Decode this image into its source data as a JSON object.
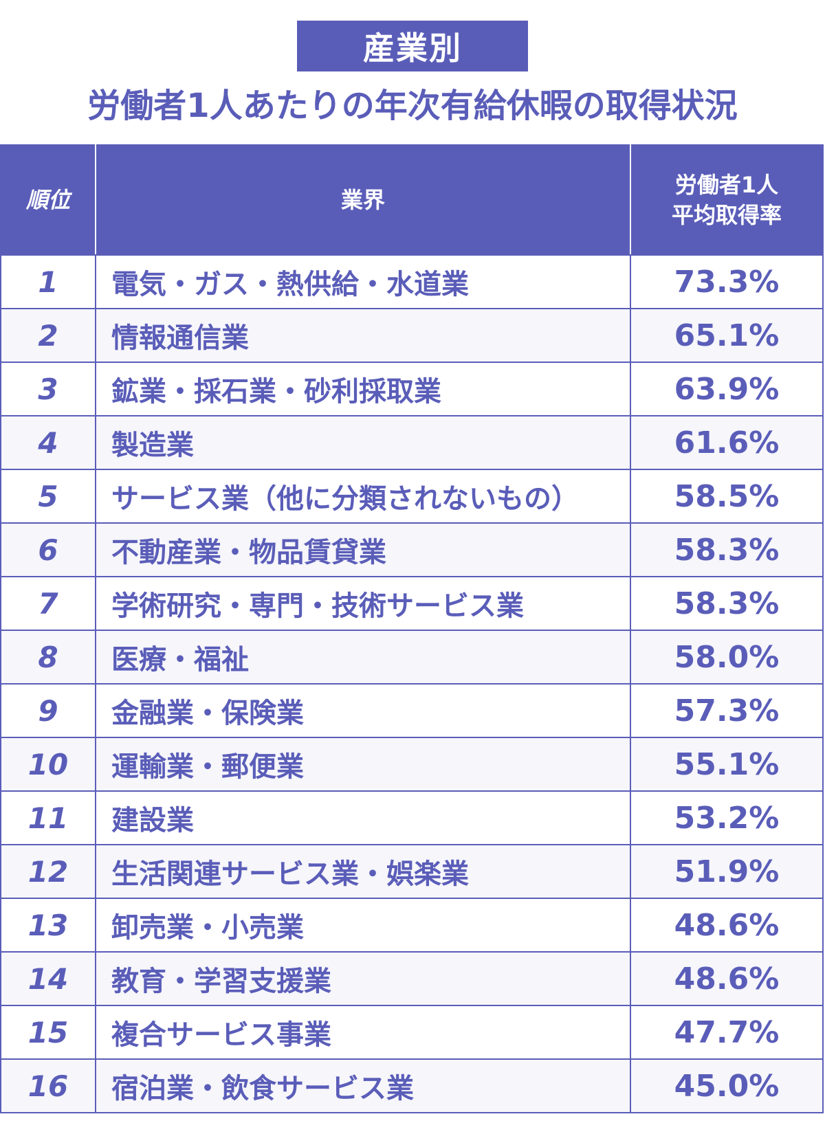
{
  "header": {
    "badge": "産業別",
    "title": "労働者1人あたりの年次有給休暇の取得状況"
  },
  "chart_data": {
    "type": "table",
    "columns": {
      "rank": "順位",
      "industry": "業界",
      "rate_line1": "労働者1人",
      "rate_line2": "平均取得率"
    },
    "rows": [
      {
        "rank": "1",
        "industry": "電気・ガス・熱供給・水道業",
        "rate": "73.3%"
      },
      {
        "rank": "2",
        "industry": "情報通信業",
        "rate": "65.1%"
      },
      {
        "rank": "3",
        "industry": "鉱業・採石業・砂利採取業",
        "rate": "63.9%"
      },
      {
        "rank": "4",
        "industry": "製造業",
        "rate": "61.6%"
      },
      {
        "rank": "5",
        "industry": "サービス業（他に分類されないもの）",
        "rate": "58.5%"
      },
      {
        "rank": "6",
        "industry": "不動産業・物品賃貸業",
        "rate": "58.3%"
      },
      {
        "rank": "7",
        "industry": "学術研究・専門・技術サービス業",
        "rate": "58.3%"
      },
      {
        "rank": "8",
        "industry": "医療・福祉",
        "rate": "58.0%"
      },
      {
        "rank": "9",
        "industry": "金融業・保険業",
        "rate": "57.3%"
      },
      {
        "rank": "10",
        "industry": "運輸業・郵便業",
        "rate": "55.1%"
      },
      {
        "rank": "11",
        "industry": "建設業",
        "rate": "53.2%"
      },
      {
        "rank": "12",
        "industry": "生活関連サービス業・娯楽業",
        "rate": "51.9%"
      },
      {
        "rank": "13",
        "industry": "卸売業・小売業",
        "rate": "48.6%"
      },
      {
        "rank": "14",
        "industry": "教育・学習支援業",
        "rate": "48.6%"
      },
      {
        "rank": "15",
        "industry": "複合サービス事業",
        "rate": "47.7%"
      },
      {
        "rank": "16",
        "industry": "宿泊業・飲食サービス業",
        "rate": "45.0%"
      }
    ]
  },
  "colors": {
    "accent": "#5a5db8",
    "row_alt": "#f6f6fb"
  }
}
